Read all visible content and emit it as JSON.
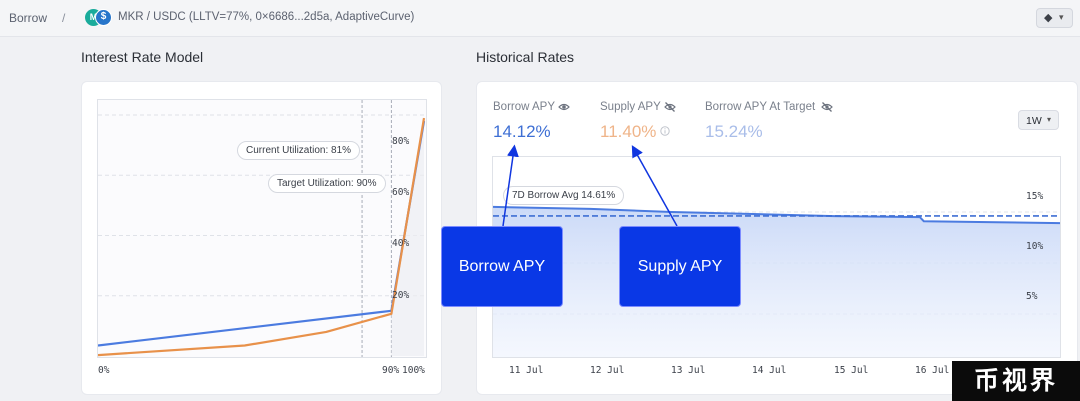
{
  "breadcrumb": {
    "root": "Borrow",
    "separator": "/",
    "market": "MKR / USDC (LLTV=77%, 0×6686...2d5a, AdaptiveCurve)",
    "token_icons": [
      "mkr-token-icon",
      "usdc-token-icon"
    ]
  },
  "network": {
    "icon": "ethereum-icon",
    "caret": "▾"
  },
  "irm": {
    "title": "Interest Rate Model",
    "current_utilization_label": "Current Utilization: 81%",
    "target_utilization_label": "Target Utilization: 90%",
    "current_utilization": 0.81,
    "target_utilization": 0.9,
    "y_ticks": [
      "80%",
      "60%",
      "40%",
      "20%"
    ],
    "x_ticks": [
      "0%",
      "90%",
      "100%"
    ],
    "chart_data": {
      "type": "line",
      "xlabel": "",
      "ylabel": "",
      "x_range": [
        0,
        100
      ],
      "y_range": [
        0,
        85
      ],
      "series": [
        {
          "color": "#4b7be0",
          "x": [
            0,
            90,
            100
          ],
          "y": [
            3.5,
            15,
            78
          ]
        },
        {
          "color": "#e8914a",
          "x": [
            0,
            45,
            70,
            90,
            100
          ],
          "y": [
            0.3,
            3.5,
            8,
            14,
            79
          ]
        }
      ]
    }
  },
  "historical": {
    "title": "Historical Rates",
    "stats": [
      {
        "label": "Borrow APY",
        "value": "14.12%",
        "color": "#3e6fd4",
        "icon": "eye-icon"
      },
      {
        "label": "Supply APY",
        "value": "11.40%",
        "color": "#efb489",
        "icon": "eye-off-icon",
        "info_icon": "info-icon"
      },
      {
        "label": "Borrow APY At Target",
        "value": "15.24%",
        "color": "#a9bde9",
        "icon": "eye-off-icon"
      }
    ],
    "range": {
      "label": "1W",
      "caret": "▾"
    },
    "avg_label": "7D Borrow Avg 14.61%",
    "y_ticks": [
      "15%",
      "10%",
      "5%"
    ],
    "x_ticks": [
      "11 Jul",
      "12 Jul",
      "13 Jul",
      "14 Jul",
      "15 Jul",
      "16 Jul"
    ],
    "chart_data": {
      "type": "area",
      "xlabel": "",
      "ylabel": "",
      "x_range": [
        0,
        7
      ],
      "y_range": [
        0,
        20
      ],
      "average": 14.61,
      "series": [
        {
          "color": "#4b7be0",
          "x": [
            0,
            1.2,
            2.2,
            3.2,
            4.2,
            5.25,
            5.3,
            6.2,
            7
          ],
          "y": [
            15.5,
            15.3,
            15.0,
            14.8,
            14.6,
            14.5,
            14.1,
            14.0,
            13.9
          ]
        }
      ]
    }
  },
  "callouts": [
    {
      "label": "Borrow APY"
    },
    {
      "label": "Supply APY"
    }
  ],
  "watermark": "币视界"
}
